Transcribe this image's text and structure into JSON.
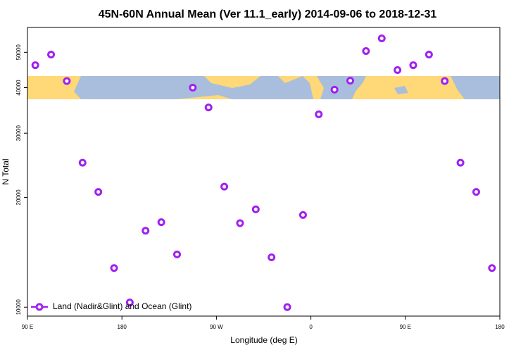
{
  "chart_data": {
    "type": "scatter",
    "title": "45N-60N Annual Mean (Ver 11.1_early)   2014-09-06 to 2018-12-31",
    "x_label": "Longitude (deg E)",
    "y_label": "N Total",
    "y_scale": "log",
    "xlim": [
      90,
      540
    ],
    "xticks": [
      {
        "value": 90,
        "label": "90 E"
      },
      {
        "value": 180,
        "label": "180"
      },
      {
        "value": 270,
        "label": "90 W"
      },
      {
        "value": 360,
        "label": "0"
      },
      {
        "value": 450,
        "label": "90 E"
      },
      {
        "value": 540,
        "label": "180"
      }
    ],
    "ylim": [
      9450,
      58500
    ],
    "yticks": [
      10000,
      20000,
      30000,
      40000,
      50000
    ],
    "legend": "bottom-left",
    "series": [
      {
        "name": "Land (Nadir&Glint) and Ocean (Glint)",
        "color": "#a020f0",
        "x": [
          97.5,
          112.5,
          127.5,
          142.5,
          157.5,
          172.5,
          187.5,
          202.5,
          217.5,
          232.5,
          247.5,
          262.5,
          277.5,
          292.5,
          307.5,
          322.5,
          337.5,
          352.5,
          367.5,
          382.5,
          397.5,
          412.5,
          427.5,
          442.5,
          457.5,
          472.5,
          487.5,
          502.5,
          517.5,
          532.5
        ],
        "values": [
          46100,
          49300,
          41700,
          24900,
          20700,
          12800,
          10300,
          16200,
          17100,
          13950,
          40000,
          35300,
          21400,
          17000,
          18550,
          13700,
          10000,
          17900,
          33800,
          39500,
          41800,
          50400,
          54600,
          44700,
          46100,
          49300,
          41700,
          24900,
          20700,
          12800
        ]
      }
    ]
  }
}
